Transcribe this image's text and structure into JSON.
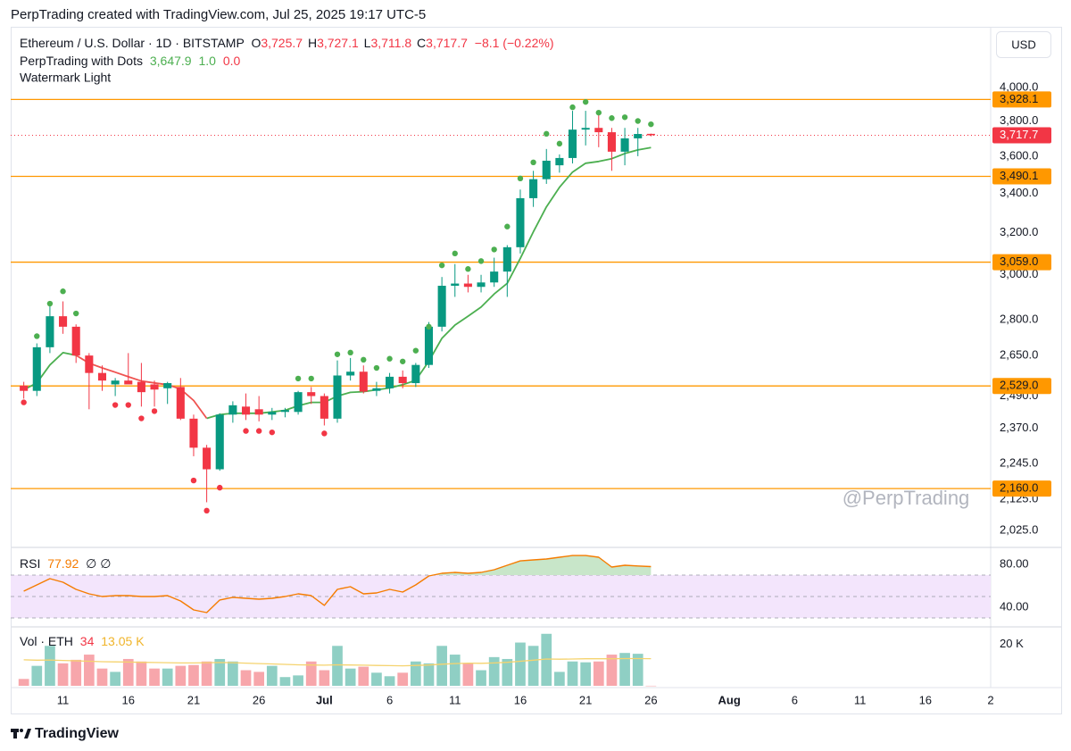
{
  "header": {
    "title": "PerpTrading created with TradingView.com, Jul 25, 2025 19:17 UTC-5"
  },
  "legend": {
    "symbol": "Ethereum / U.S. Dollar · 1D · BITSTAMP",
    "o_label": "O",
    "o": "3,725.7",
    "h_label": "H",
    "h": "3,727.1",
    "l_label": "L",
    "l": "3,711.8",
    "c_label": "C",
    "c": "3,717.7",
    "change": "−8.1 (−0.22%)",
    "indicator": "PerpTrading with Dots",
    "ind_values": [
      "3,647.9",
      "1.0",
      "0.0"
    ],
    "watermark_label": "Watermark Light",
    "currency": "USD",
    "rsi_label": "RSI",
    "rsi_value": "77.92",
    "rsi_extra": "∅ ∅",
    "vol_label": "Vol · ETH",
    "vol_value": "34",
    "vol_ma": "13.05 K"
  },
  "watermark": "@PerpTrading",
  "footer": "TradingView",
  "chart_data": [
    {
      "type": "candlestick",
      "x": [
        "Jun 8",
        "Jun 9",
        "Jun 10",
        "Jun 11",
        "Jun 12",
        "Jun 13",
        "Jun 14",
        "Jun 15",
        "Jun 16",
        "Jun 17",
        "Jun 18",
        "Jun 19",
        "Jun 20",
        "Jun 21",
        "Jun 22",
        "Jun 23",
        "Jun 24",
        "Jun 25",
        "Jun 26",
        "Jun 27",
        "Jun 28",
        "Jun 29",
        "Jun 30",
        "Jul 1",
        "Jul 2",
        "Jul 3",
        "Jul 4",
        "Jul 5",
        "Jul 6",
        "Jul 7",
        "Jul 8",
        "Jul 9",
        "Jul 10",
        "Jul 11",
        "Jul 12",
        "Jul 13",
        "Jul 14",
        "Jul 15",
        "Jul 16",
        "Jul 17",
        "Jul 18",
        "Jul 19",
        "Jul 20",
        "Jul 21",
        "Jul 22",
        "Jul 23",
        "Jul 24",
        "Jul 25",
        "Jul 26"
      ],
      "open": [
        2530,
        2510,
        2684,
        2815,
        2770,
        2650,
        2580,
        2535,
        2550,
        2545,
        2535,
        2520,
        2525,
        2405,
        2300,
        2225,
        2420,
        2450,
        2440,
        2420,
        2430,
        2430,
        2505,
        2490,
        2405,
        2570,
        2585,
        2510,
        2520,
        2565,
        2540,
        2612,
        2770,
        2950,
        2960,
        2945,
        2965,
        3015,
        3130,
        3375,
        3475,
        3550,
        3590,
        3750,
        3760,
        3735,
        3625,
        3700,
        3725.7
      ],
      "high": [
        2545,
        2700,
        2860,
        2880,
        2780,
        2660,
        2610,
        2560,
        2660,
        2620,
        2550,
        2545,
        2560,
        2420,
        2310,
        2425,
        2470,
        2500,
        2490,
        2445,
        2445,
        2510,
        2525,
        2500,
        2630,
        2640,
        2610,
        2545,
        2580,
        2590,
        2620,
        2790,
        2990,
        3050,
        3000,
        3000,
        3080,
        3140,
        3420,
        3520,
        3640,
        3610,
        3860,
        3860,
        3840,
        3760,
        3760,
        3760,
        3727.1
      ],
      "low": [
        2480,
        2490,
        2660,
        2740,
        2620,
        2440,
        2510,
        2490,
        2540,
        2450,
        2450,
        2460,
        2400,
        2270,
        2115,
        2220,
        2390,
        2400,
        2395,
        2400,
        2410,
        2420,
        2460,
        2380,
        2390,
        2550,
        2500,
        2490,
        2500,
        2520,
        2525,
        2600,
        2750,
        2900,
        2920,
        2920,
        2945,
        2900,
        3100,
        3330,
        3450,
        3510,
        3560,
        3660,
        3650,
        3520,
        3550,
        3600,
        3711.8
      ],
      "close": [
        2510,
        2684,
        2815,
        2770,
        2650,
        2580,
        2550,
        2550,
        2535,
        2505,
        2515,
        2540,
        2405,
        2300,
        2225,
        2420,
        2455,
        2420,
        2420,
        2430,
        2437,
        2505,
        2490,
        2405,
        2570,
        2585,
        2507,
        2520,
        2565,
        2540,
        2612,
        2770,
        2950,
        2960,
        2945,
        2965,
        3015,
        3130,
        3375,
        3475,
        3575,
        3590,
        3750,
        3760,
        3735,
        3625,
        3700,
        3725,
        3717.7
      ],
      "up_color": "#089981",
      "down_color": "#f23645",
      "dots_up": {
        "color": "#4caf50",
        "values": [
          null,
          2730,
          2870,
          2925,
          2827,
          null,
          null,
          null,
          null,
          null,
          null,
          null,
          null,
          null,
          null,
          null,
          null,
          null,
          null,
          null,
          null,
          2558,
          2558,
          null,
          2655,
          2662,
          2633,
          2600,
          2637,
          2626,
          2670,
          2770,
          3044,
          3100,
          3027,
          3064,
          3119,
          3231,
          3479,
          3566,
          3726,
          3670,
          3881,
          3913,
          3849,
          3817,
          3822,
          3800,
          3781
        ]
      },
      "dots_down": {
        "color": "#f23645",
        "values": [
          2466,
          null,
          null,
          null,
          null,
          null,
          null,
          2456,
          2456,
          2406,
          2433,
          null,
          null,
          2187,
          2088,
          2163,
          null,
          2360,
          2360,
          2355,
          null,
          null,
          null,
          2351,
          null,
          null,
          null,
          null,
          null,
          null,
          null,
          null,
          null,
          null,
          null,
          null,
          null,
          null,
          null,
          null,
          null,
          null,
          null,
          null,
          null,
          null,
          null,
          null,
          null
        ]
      },
      "ma_up": {
        "color": "#4caf50",
        "values": [
          2514,
          2541,
          2612,
          2662,
          2651,
          null,
          null,
          null,
          null,
          null,
          null,
          null,
          null,
          null,
          2406,
          2420,
          2425,
          2425,
          2425,
          2430,
          2436,
          2453,
          2466,
          2466,
          2490,
          2504,
          2507,
          2514,
          2521,
          2534,
          2551,
          2627,
          2721,
          2777,
          2815,
          2855,
          2913,
          2961,
          3077,
          3205,
          3330,
          3432,
          3513,
          3561,
          3571,
          3586,
          3615,
          3635,
          3647.9
        ]
      },
      "ma_down": {
        "color": "#ef5350",
        "values": [
          null,
          null,
          null,
          null,
          2651,
          2619,
          2600,
          2583,
          2565,
          2548,
          2541,
          2534,
          2517,
          2473,
          2406,
          null,
          null,
          null,
          null,
          null,
          null,
          null,
          null,
          null,
          null,
          null,
          null,
          null,
          null,
          null,
          null,
          null,
          null,
          null,
          null,
          null,
          null,
          null,
          null,
          null,
          null,
          null,
          null,
          null,
          null,
          null,
          null,
          null,
          null
        ]
      },
      "levels": {
        "color": "#ff9800",
        "items": [
          {
            "value": 3928.1,
            "label": "3,928.1"
          },
          {
            "value": 3490.1,
            "label": "3,490.1"
          },
          {
            "value": 3059.0,
            "label": "3,059.0"
          },
          {
            "value": 2529.0,
            "label": "2,529.0"
          },
          {
            "value": 2160.0,
            "label": "2,160.0"
          }
        ]
      },
      "last_price": {
        "value": 3717.7,
        "label": "3,717.7",
        "color": "#f23645"
      },
      "log": true,
      "ylim": [
        1976,
        4380
      ],
      "yticks": [
        {
          "value": 4000,
          "label": "4,000.0"
        },
        {
          "value": 3800,
          "label": "3,800.0"
        },
        {
          "value": 3600,
          "label": "3,600.0"
        },
        {
          "value": 3400,
          "label": "3,400.0"
        },
        {
          "value": 3200,
          "label": "3,200.0"
        },
        {
          "value": 3000,
          "label": "3,000.0"
        },
        {
          "value": 2800,
          "label": "2,800.0"
        },
        {
          "value": 2650,
          "label": "2,650.0"
        },
        {
          "value": 2490,
          "label": "2,490.0"
        },
        {
          "value": 2370,
          "label": "2,370.0"
        },
        {
          "value": 2245,
          "label": "2,245.0"
        },
        {
          "value": 2125,
          "label": "2,125.0"
        },
        {
          "value": 2025,
          "label": "2,025.0"
        }
      ],
      "xlim": [
        "Jun 7",
        "Aug 21"
      ],
      "xticks": [
        {
          "value": "Jun 11",
          "label": "11"
        },
        {
          "value": "Jun 16",
          "label": "16"
        },
        {
          "value": "Jun 21",
          "label": "21"
        },
        {
          "value": "Jun 26",
          "label": "26"
        },
        {
          "value": "Jul 1",
          "label": "Jul"
        },
        {
          "value": "Jul 6",
          "label": "6"
        },
        {
          "value": "Jul 11",
          "label": "11"
        },
        {
          "value": "Jul 16",
          "label": "16"
        },
        {
          "value": "Jul 21",
          "label": "21"
        },
        {
          "value": "Jul 26",
          "label": "26"
        },
        {
          "value": "Aug 1",
          "label": "Aug"
        },
        {
          "value": "Aug 6",
          "label": "6"
        },
        {
          "value": "Aug 11",
          "label": "11"
        },
        {
          "value": "Aug 16",
          "label": "16"
        },
        {
          "value": "Aug 21",
          "label": "2"
        }
      ],
      "grid": false
    },
    {
      "type": "rsi",
      "values": [
        55.0,
        60.8,
        66.7,
        63.3,
        56.7,
        52.5,
        50,
        50.8,
        50.8,
        50,
        50,
        50.8,
        45.8,
        37.5,
        35,
        46.7,
        49.2,
        48.3,
        47.5,
        48.3,
        50,
        52.5,
        50.8,
        41.7,
        56.7,
        59.2,
        52.5,
        53.3,
        56.7,
        54.2,
        60.8,
        69.2,
        71.7,
        72.5,
        71.7,
        72.5,
        75,
        79.2,
        83.3,
        84.2,
        85,
        86.7,
        88.3,
        88.3,
        86.7,
        77.5,
        79.2,
        78.5,
        77.92
      ],
      "color": "#f57c00",
      "band": [
        30,
        70
      ],
      "band_color": "#f3e5fc",
      "midline": 50,
      "overbought_fill": "#c8e6c9",
      "ylim": [
        23.3,
        94.2
      ],
      "yticks": [
        {
          "value": 80,
          "label": "80.00"
        },
        {
          "value": 40,
          "label": "40.00"
        }
      ]
    },
    {
      "type": "volume",
      "values": [
        3300,
        9600,
        19200,
        10800,
        12500,
        15000,
        8300,
        6700,
        12900,
        11700,
        8300,
        8300,
        9600,
        10000,
        11700,
        12900,
        11700,
        7500,
        6700,
        9600,
        4200,
        5000,
        11700,
        7500,
        19200,
        8300,
        9200,
        6300,
        4600,
        6300,
        11700,
        10800,
        19200,
        15000,
        10800,
        7500,
        13800,
        12900,
        20800,
        19200,
        25000,
        6700,
        11700,
        11300,
        11700,
        15000,
        15800,
        15400,
        34
      ],
      "ma": [
        12500,
        12300,
        12400,
        12200,
        12000,
        11800,
        11600,
        11500,
        11400,
        11300,
        11200,
        11100,
        11000,
        11000,
        11100,
        11200,
        11100,
        10900,
        10700,
        10500,
        10300,
        10100,
        10000,
        9900,
        10100,
        10000,
        9900,
        9800,
        9700,
        9600,
        9800,
        10000,
        10400,
        10700,
        10900,
        10800,
        11000,
        11300,
        11800,
        12300,
        12900,
        12800,
        12900,
        13000,
        13000,
        13000,
        13100,
        13100,
        13050
      ],
      "up_color": "#8fcfc4",
      "down_color": "#f7a6ab",
      "ma_color": "#f5d36e",
      "ylim": [
        0,
        28333
      ],
      "yticks": [
        {
          "value": 20000,
          "label": "20 K"
        }
      ]
    }
  ]
}
